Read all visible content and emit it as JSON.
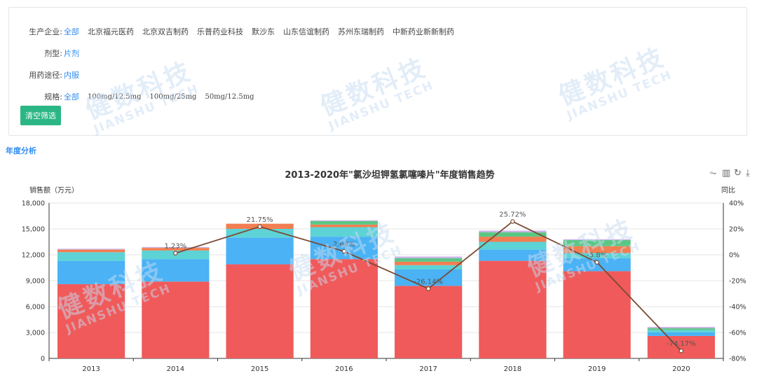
{
  "filters": {
    "manufacturer": {
      "label": "生产企业:",
      "selected": "全部",
      "options": [
        "北京福元医药",
        "北京双吉制药",
        "乐普药业科技",
        "默沙东",
        "山东信谊制药",
        "苏州东瑞制药",
        "中新药业新新制药"
      ]
    },
    "dosage_form": {
      "label": "剂型:",
      "selected": "片剂"
    },
    "route": {
      "label": "用药途径:",
      "selected": "内服"
    },
    "spec": {
      "label": "规格:",
      "selected": "全部",
      "options": [
        "100mg/12.5mg",
        "100mg/25mg",
        "50mg/12.5mg"
      ]
    },
    "clear_button": "清空筛选"
  },
  "section_title": "年度分析",
  "watermark": {
    "cn": "健数科技",
    "en": "JIANSHU TECH"
  },
  "toolbox": {
    "icons": [
      "line-chart-icon",
      "bar-chart-icon",
      "refresh-icon",
      "download-icon"
    ],
    "glyphs": [
      "⏦",
      "▥",
      "↻",
      "⤓"
    ]
  },
  "colors": {
    "accent": "#2f8cf0",
    "button": "#2bb685",
    "line": "#7b4a35"
  },
  "chart_data": {
    "type": "bar",
    "title": "2013-2020年\"氯沙坦钾氢氯噻嗪片\"年度销售趋势",
    "ylabel": "销售额（万元）",
    "y2label": "同比",
    "categories": [
      "2013",
      "2014",
      "2015",
      "2016",
      "2017",
      "2018",
      "2019",
      "2020"
    ],
    "ylim": [
      0,
      18000
    ],
    "yticks": [
      "0",
      "3,000",
      "6,000",
      "9,000",
      "12,000",
      "15,000",
      "18,000"
    ],
    "y2lim": [
      -80,
      40
    ],
    "y2ticks": [
      "-80%",
      "-60%",
      "-40%",
      "-20%",
      "0%",
      "20%",
      "40%"
    ],
    "stacked": true,
    "series": [
      {
        "color": "#f05a5a",
        "values": [
          8600,
          8900,
          10900,
          11500,
          8400,
          11300,
          10100,
          2600
        ]
      },
      {
        "color": "#4ab2f5",
        "values": [
          2700,
          2600,
          3100,
          2600,
          1900,
          1300,
          1500,
          400
        ]
      },
      {
        "color": "#5dd3d6",
        "values": [
          1000,
          1000,
          1000,
          1100,
          500,
          900,
          600,
          300
        ]
      },
      {
        "color": "#f27e52",
        "values": [
          300,
          300,
          600,
          300,
          400,
          600,
          800,
          0
        ]
      },
      {
        "color": "#5bc785",
        "values": [
          0,
          0,
          0,
          400,
          400,
          500,
          700,
          200
        ]
      },
      {
        "color": "#c9b3e6",
        "values": [
          100,
          100,
          0,
          100,
          200,
          200,
          100,
          150
        ]
      }
    ],
    "line_series": {
      "type": "line",
      "values": [
        null,
        1.23,
        21.75,
        2.68,
        -26.14,
        25.72,
        -5.8,
        -74.17
      ],
      "labels": [
        "",
        "1.23%",
        "21.75%",
        "2.68%",
        "-26.14%",
        "25.72%",
        "-5.8%",
        "-74.17%"
      ]
    },
    "grid": true
  }
}
